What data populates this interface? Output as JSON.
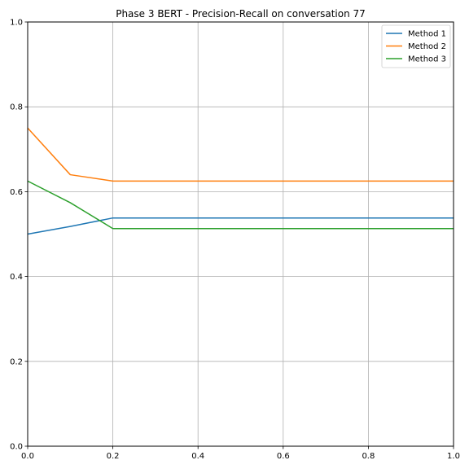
{
  "chart_data": {
    "type": "line",
    "title": "Phase 3 BERT - Precision-Recall on conversation 77",
    "xlabel": "",
    "ylabel": "",
    "xlim": [
      0,
      1
    ],
    "ylim": [
      0,
      1
    ],
    "grid": true,
    "legend_position": "top-right",
    "x_ticks": [
      "0.0",
      "0.2",
      "0.4",
      "0.6",
      "0.8",
      "1.0"
    ],
    "y_ticks": [
      "0.0",
      "0.2",
      "0.4",
      "0.6",
      "0.8",
      "1.0"
    ],
    "series": [
      {
        "name": "Method 1",
        "color": "#1f77b4",
        "x": [
          0.0,
          0.1,
          0.2,
          0.3,
          0.4,
          0.5,
          0.6,
          0.7,
          0.8,
          0.9,
          1.0
        ],
        "y": [
          0.5,
          0.518,
          0.538,
          0.538,
          0.538,
          0.538,
          0.538,
          0.538,
          0.538,
          0.538,
          0.538
        ]
      },
      {
        "name": "Method 2",
        "color": "#ff7f0e",
        "x": [
          0.0,
          0.1,
          0.2,
          0.3,
          0.4,
          0.5,
          0.6,
          0.7,
          0.8,
          0.9,
          1.0
        ],
        "y": [
          0.75,
          0.64,
          0.625,
          0.625,
          0.625,
          0.625,
          0.625,
          0.625,
          0.625,
          0.625,
          0.625
        ]
      },
      {
        "name": "Method 3",
        "color": "#2ca02c",
        "x": [
          0.0,
          0.1,
          0.2,
          0.3,
          0.4,
          0.5,
          0.6,
          0.7,
          0.8,
          0.9,
          1.0
        ],
        "y": [
          0.625,
          0.574,
          0.513,
          0.513,
          0.513,
          0.513,
          0.513,
          0.513,
          0.513,
          0.513,
          0.513
        ]
      }
    ]
  }
}
